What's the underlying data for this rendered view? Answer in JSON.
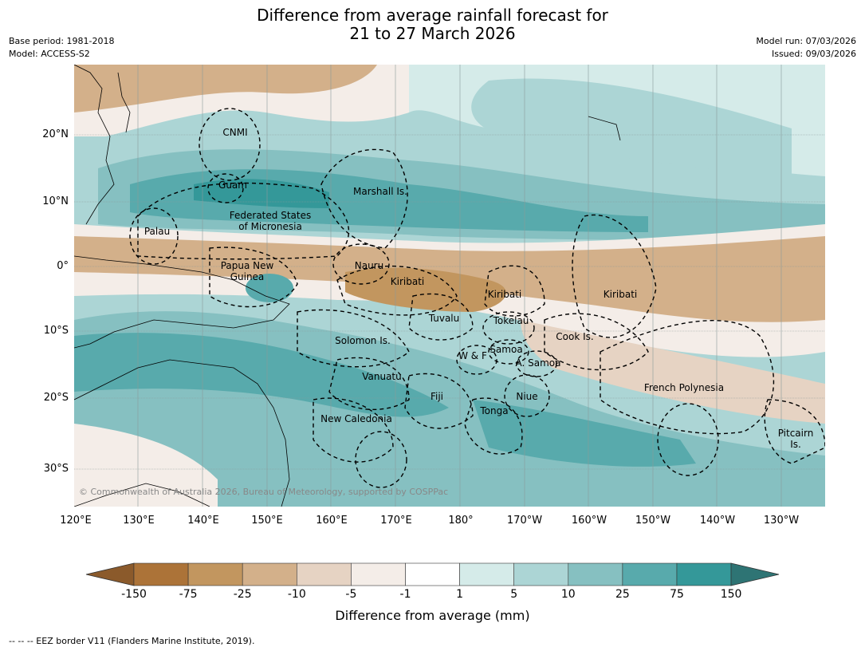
{
  "title_line1": "Difference from average rainfall forecast for",
  "title_line2": "21 to 27 March 2026",
  "base_period": "Base period: 1981-2018",
  "model": "Model: ACCESS-S2",
  "model_run": "Model run: 07/03/2026",
  "issued": "Issued: 09/03/2026",
  "copyright": "© Commonwealth of Australia 2026, Bureau of Meteorology, supported by COSPPac",
  "lat_labels": [
    "20°N",
    "10°N",
    "0°",
    "10°S",
    "20°S",
    "30°S"
  ],
  "lon_labels": [
    "120°E",
    "130°E",
    "140°E",
    "150°E",
    "160°E",
    "170°E",
    "180°",
    "170°W",
    "160°W",
    "150°W",
    "140°W",
    "130°W"
  ],
  "region_labels": {
    "cnmi": "CNMI",
    "guam": "Guam",
    "marshall": "Marshall Is.",
    "fsm_1": "Federated States",
    "fsm_2": "of Micronesia",
    "palau": "Palau",
    "png_1": "Papua New",
    "png_2": "Guinea",
    "nauru": "Nauru",
    "kiribati_w": "Kiribati",
    "kiribati_c": "Kiribati",
    "kiribati_e": "Kiribati",
    "tuvalu": "Tuvalu",
    "tokelau": "Tokelau",
    "cook": "Cook Is.",
    "solomon": "Solomon Is.",
    "wf": "W & F",
    "samoa": "Samoa",
    "asamoa": "A. Samoa",
    "vanuatu": "Vanuatu",
    "fiji": "Fiji",
    "niue": "Niue",
    "tonga": "Tonga",
    "frpoly": "French Polynesia",
    "newcal": "New Caledonia",
    "pitcairn_1": "Pitcairn",
    "pitcairn_2": "Is."
  },
  "colorbar": {
    "labels": [
      "-150",
      "-75",
      "-25",
      "-10",
      "-5",
      "-1",
      "1",
      "5",
      "10",
      "25",
      "75",
      "150"
    ],
    "colors": [
      "#ac7338",
      "#c2965f",
      "#d3b08a",
      "#e6d3c3",
      "#f4ede8",
      "#ffffff",
      "#d5ebe9",
      "#acd5d5",
      "#86c0c1",
      "#58aaac",
      "#349899"
    ],
    "under_color": "#8b5a2b",
    "over_color": "#2e7474",
    "title": "Difference from average (mm)"
  },
  "footnote": "--  --  -- EEZ border V11 (Flanders Marine Institute, 2019)."
}
